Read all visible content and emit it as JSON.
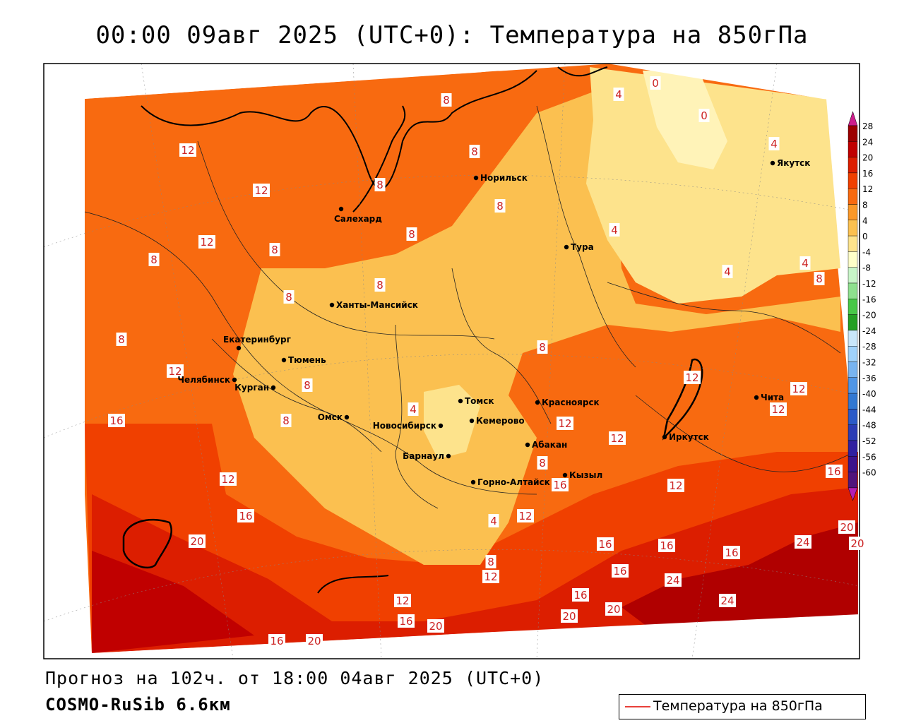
{
  "title": "00:00 09авг 2025 (UTC+0): Температура на 850гПа",
  "subtitle": "Прогноз на 102ч. от 18:00 04авг 2025 (UTC+0)",
  "model": "COSMO-RuSib 6.6км",
  "legend_label": "Температура на 850гПа",
  "colorbar": {
    "labels": [
      "28",
      "24",
      "20",
      "16",
      "12",
      "8",
      "4",
      "0",
      "-4",
      "-8",
      "-12",
      "-16",
      "-20",
      "-24",
      "-28",
      "-32",
      "-36",
      "-40",
      "-44",
      "-48",
      "-52",
      "-56",
      "-60"
    ],
    "colors": [
      "#9c0000",
      "#c00000",
      "#dc1e00",
      "#f04000",
      "#f86a10",
      "#fa9828",
      "#fbc050",
      "#fde38c",
      "#ffffc8",
      "#c8f5c8",
      "#8ee08e",
      "#48c848",
      "#24a024",
      "#c8e6fa",
      "#a0d2fa",
      "#78b4f0",
      "#5096e6",
      "#3278d2",
      "#2a5ac8",
      "#2a3cb4",
      "#3020a0",
      "#3c148c",
      "#50147c"
    ],
    "top_color": "#cc1e8c",
    "bottom_color": "#b41eb4"
  },
  "cities": [
    {
      "name": "Норильск"
    },
    {
      "name": "Салехард"
    },
    {
      "name": "Тура"
    },
    {
      "name": "Якутск"
    },
    {
      "name": "Ханты-Мансийск"
    },
    {
      "name": "Екатеринбург"
    },
    {
      "name": "Тюмень"
    },
    {
      "name": "Челябинск"
    },
    {
      "name": "Курган"
    },
    {
      "name": "Омск"
    },
    {
      "name": "Новосибирск"
    },
    {
      "name": "Томск"
    },
    {
      "name": "Кемерово"
    },
    {
      "name": "Красноярск"
    },
    {
      "name": "Абакан"
    },
    {
      "name": "Барнаул"
    },
    {
      "name": "Горно-Алтайск"
    },
    {
      "name": "Кызыл"
    },
    {
      "name": "Иркутск"
    },
    {
      "name": "Чита"
    }
  ],
  "contour_labels": [
    "8",
    "8",
    "0",
    "0",
    "4",
    "4",
    "12",
    "12",
    "8",
    "8",
    "4",
    "8",
    "4",
    "4",
    "8",
    "12",
    "8",
    "8",
    "8",
    "8",
    "8",
    "8",
    "12",
    "8",
    "8",
    "4",
    "12",
    "12",
    "16",
    "12",
    "12",
    "16",
    "12",
    "16",
    "8",
    "12",
    "12",
    "4",
    "16",
    "12",
    "20",
    "16",
    "16",
    "20",
    "24",
    "16",
    "24",
    "20",
    "12",
    "20",
    "16",
    "16",
    "16",
    "20",
    "24",
    "20",
    "20",
    "16",
    "12",
    "8"
  ]
}
